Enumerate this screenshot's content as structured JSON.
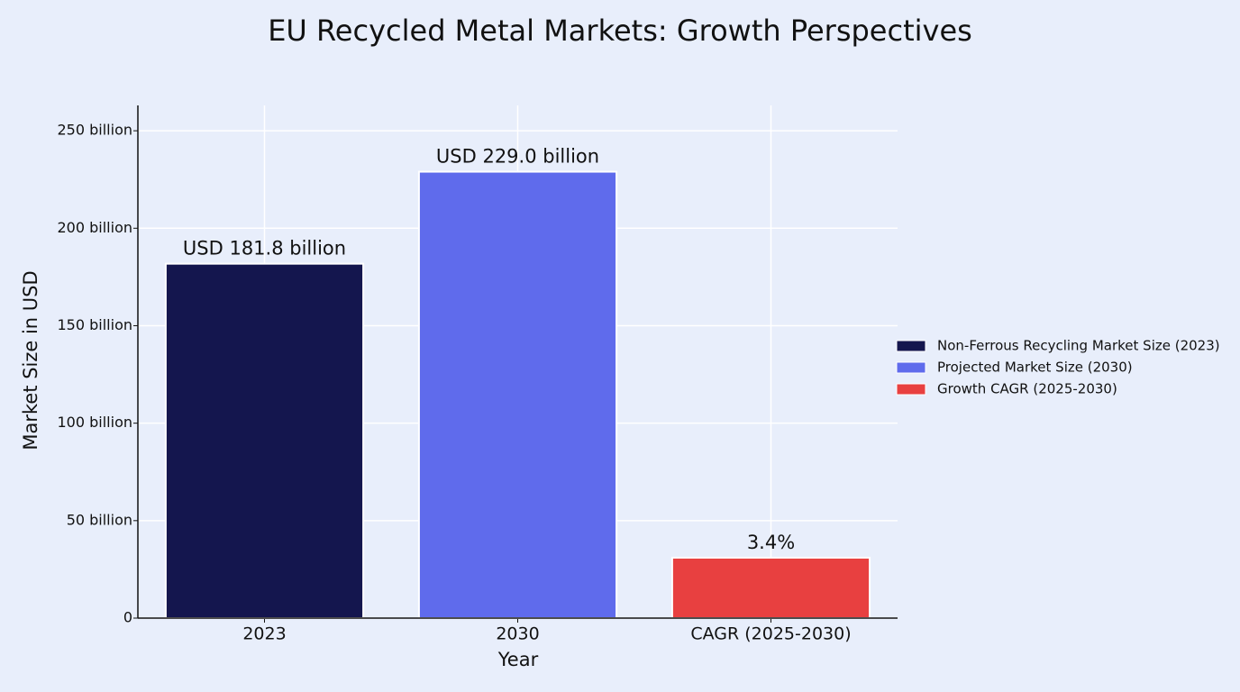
{
  "chart_data": {
    "type": "bar",
    "title": "EU Recycled Metal Markets: Growth Perspectives",
    "x_label": "Year",
    "y_label": "Market Size in USD",
    "categories": [
      "2023",
      "2030",
      "CAGR (2025-2030)"
    ],
    "values": [
      181.8,
      229.0,
      31
    ],
    "value_labels": [
      "USD 181.8 billion",
      "USD 229.0 billion",
      null
    ],
    "annotations": [
      {
        "category": 2,
        "text": "3.4%"
      }
    ],
    "colors": [
      "#14164e",
      "#5f6bec",
      "#e84040"
    ],
    "legend": [
      "Non-Ferrous Recycling Market Size (2023)",
      "Projected Market Size (2030)",
      "Growth CAGR (2025-2030)"
    ],
    "legend_position": "right",
    "ylim": [
      0,
      263
    ],
    "yticks": [
      0,
      {
        "value": 50,
        "label": "50 billion"
      },
      {
        "value": 100,
        "label": "100 billion"
      },
      {
        "value": 150,
        "label": "150 billion"
      },
      {
        "value": 200,
        "label": "200 billion"
      },
      {
        "value": 250,
        "label": "250 billion"
      }
    ],
    "grid": true
  }
}
